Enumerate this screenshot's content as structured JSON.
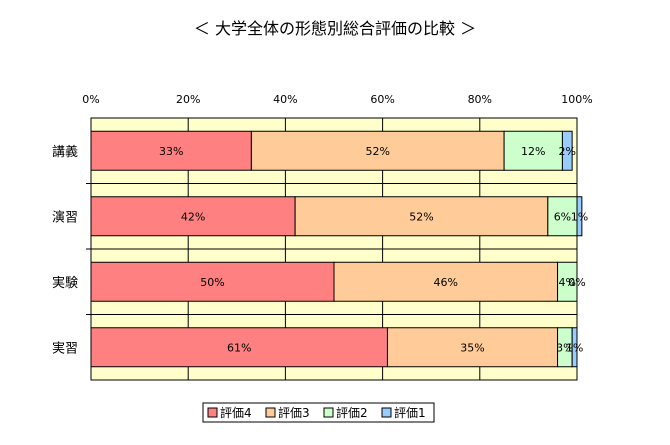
{
  "chart_data": {
    "type": "bar",
    "orientation": "horizontal",
    "stacked": "percent",
    "title": "＜ 大学全体の形態別総合評価の比較 ＞",
    "xlabel": "",
    "ylabel": "",
    "xlim": [
      0,
      100
    ],
    "x_ticks": [
      "0%",
      "20%",
      "40%",
      "60%",
      "80%",
      "100%"
    ],
    "x_tick_values": [
      0,
      20,
      40,
      60,
      80,
      100
    ],
    "categories": [
      "講義",
      "演習",
      "実験",
      "実習"
    ],
    "series": [
      {
        "name": "評価4",
        "color": "#ff8080",
        "values": [
          33,
          42,
          50,
          61
        ],
        "labels": [
          "33%",
          "42%",
          "50%",
          "61%"
        ]
      },
      {
        "name": "評価3",
        "color": "#ffcc99",
        "values": [
          52,
          52,
          46,
          35
        ],
        "labels": [
          "52%",
          "52%",
          "46%",
          "35%"
        ]
      },
      {
        "name": "評価2",
        "color": "#ccffcc",
        "values": [
          12,
          6,
          4,
          3
        ],
        "labels": [
          "12%",
          "6%",
          "4%",
          "3%"
        ]
      },
      {
        "name": "評価1",
        "color": "#99ccff",
        "values": [
          2,
          1,
          0,
          1
        ],
        "labels": [
          "2%",
          "1%",
          "0%",
          "1%"
        ]
      }
    ],
    "grid": true,
    "plot_background": "#ffffcc",
    "legend_position": "bottom"
  }
}
